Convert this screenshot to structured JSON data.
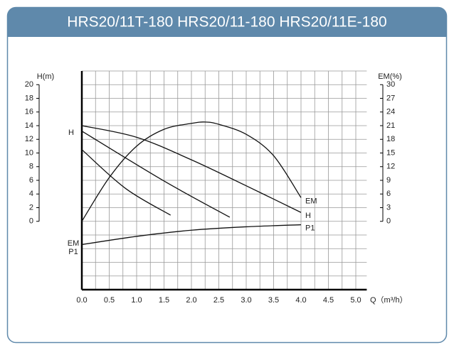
{
  "chart_data": {
    "type": "line",
    "title": "HRS20/11T-180 HRS20/11-180 HRS20/11E-180",
    "x_label": "Q（m³/h）",
    "y_label": "H(m)",
    "y2_label": "EM(%)",
    "xlim": [
      0,
      5.2
    ],
    "ylim": [
      -10,
      22
    ],
    "y2lim": [
      -15,
      33
    ],
    "xticks": [
      {
        "value": 0,
        "label": "0.0"
      },
      0.5,
      {
        "value": 1,
        "label": "1.0"
      },
      1.5,
      {
        "value": 2,
        "label": "2.0"
      },
      2.5,
      {
        "value": 3,
        "label": "3.0"
      },
      3.5,
      {
        "value": 4,
        "label": "4.0"
      },
      4.5,
      {
        "value": 5,
        "label": "5.0"
      }
    ],
    "yticks": [
      0,
      2,
      4,
      6,
      8,
      10,
      12,
      14,
      16,
      18,
      20
    ],
    "y2ticks": [
      0,
      3,
      6,
      9,
      12,
      15,
      18,
      21,
      24,
      27,
      30
    ],
    "grid": true,
    "series": [
      {
        "name": "EM",
        "color": "#111111",
        "axis": "y2",
        "x": [
          0,
          0.5,
          1,
          1.5,
          2,
          2.25,
          2.5,
          3,
          3.5,
          4
        ],
        "values": [
          0,
          9.6,
          16.5,
          20.2,
          21.5,
          21.8,
          21.3,
          19.1,
          14.4,
          5.2
        ]
      },
      {
        "name": "H",
        "color": "#111111",
        "x": [
          0,
          1,
          2,
          3,
          4
        ],
        "values": [
          14,
          12.3,
          9,
          5.2,
          1.3
        ]
      },
      {
        "color": "#111111",
        "x": [
          0,
          1.5,
          2.7
        ],
        "values": [
          13.2,
          5.9,
          0.6
        ]
      },
      {
        "color": "#111111",
        "x": [
          0,
          0.8,
          1.62
        ],
        "values": [
          10.5,
          4.8,
          0.9
        ]
      },
      {
        "name": "P1",
        "color": "#111111",
        "x": [
          0,
          1,
          2,
          3,
          4
        ],
        "values": [
          -3.4,
          -2.2,
          -1.3,
          -0.8,
          -0.5
        ]
      }
    ],
    "annotations": [
      "H",
      "EM",
      "P1"
    ]
  }
}
